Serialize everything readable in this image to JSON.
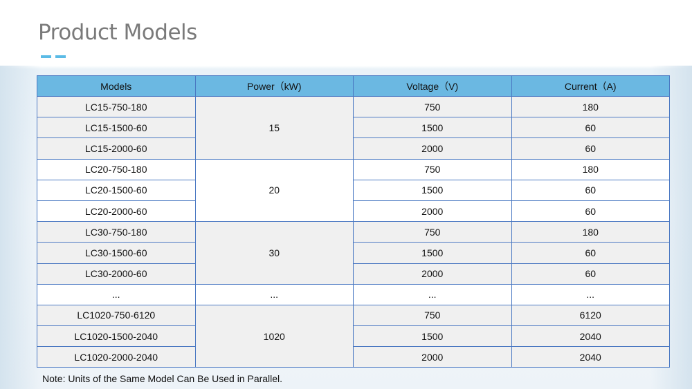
{
  "title": "Product Models",
  "accent_color": "#5bbbe6",
  "header_color": "#6bb8e2",
  "columns": [
    "Models",
    "Power（kW)",
    "Voltage（V)",
    "Current（A)"
  ],
  "groups": [
    {
      "power": "15",
      "rows": [
        [
          "LC15-750-180",
          "750",
          "180"
        ],
        [
          "LC15-1500-60",
          "1500",
          "60"
        ],
        [
          "LC15-2000-60",
          "2000",
          "60"
        ]
      ]
    },
    {
      "power": "20",
      "rows": [
        [
          "LC20-750-180",
          "750",
          "180"
        ],
        [
          "LC20-1500-60",
          "1500",
          "60"
        ],
        [
          "LC20-2000-60",
          "2000",
          "60"
        ]
      ]
    },
    {
      "power": "30",
      "rows": [
        [
          "LC30-750-180",
          "750",
          "180"
        ],
        [
          "LC30-1500-60",
          "1500",
          "60"
        ],
        [
          "LC30-2000-60",
          "2000",
          "60"
        ]
      ]
    },
    {
      "power": "...",
      "rows": [
        [
          "...",
          "...",
          "..."
        ]
      ]
    },
    {
      "power": "1020",
      "rows": [
        [
          "LC1020-750-6120",
          "750",
          "6120"
        ],
        [
          "LC1020-1500-2040",
          "1500",
          "2040"
        ],
        [
          "LC1020-2000-2040",
          "2000",
          "2040"
        ]
      ]
    }
  ],
  "note": "Note: Units of the Same Model Can Be Used in Parallel."
}
